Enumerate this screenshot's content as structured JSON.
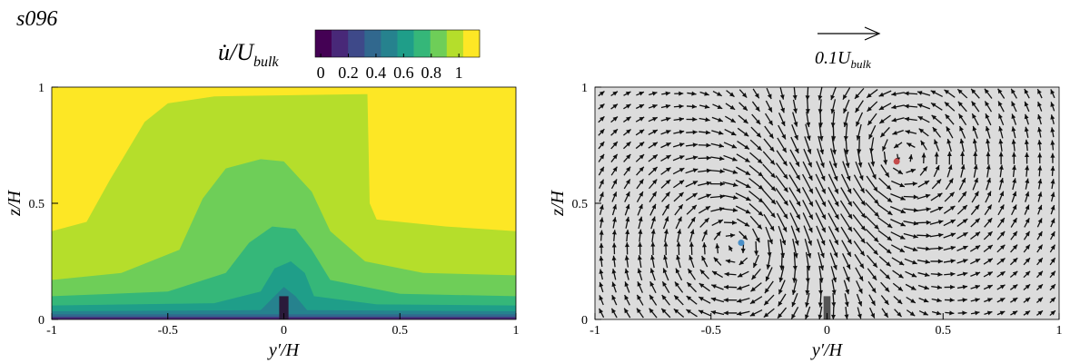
{
  "figure_label": "s096",
  "chart_data": [
    {
      "type": "contour",
      "title": "u̇/U",
      "title_subscript": "bulk",
      "x_label": "y′/H",
      "y_label": "z/H",
      "xlim": [
        -1,
        1
      ],
      "ylim": [
        0,
        1
      ],
      "xticks": [
        -1,
        -0.5,
        0,
        0.5,
        1
      ],
      "yticks": [
        0,
        0.5,
        1
      ],
      "colorbar": {
        "lim": [
          -0.04,
          1.15
        ],
        "ticks": [
          0,
          0.2,
          0.4,
          0.6,
          0.8,
          1
        ],
        "colors": [
          "#440154",
          "#482878",
          "#3e4989",
          "#31688e",
          "#26828e",
          "#1f9e89",
          "#35b779",
          "#6ece58",
          "#b5de2b",
          "#fde725"
        ]
      }
    },
    {
      "type": "quiver",
      "reference_label": "0.1U",
      "reference_subscript": "bulk",
      "x_label": "y′/H",
      "y_label": "z/H",
      "xlim": [
        -1,
        1
      ],
      "ylim": [
        0,
        1
      ],
      "xticks": [
        -1,
        -0.5,
        0,
        0.5,
        1
      ],
      "yticks": [
        0,
        0.5,
        1
      ],
      "background": "#dcdcdc",
      "arrow_color": "#111111",
      "markers": [
        {
          "x": -0.37,
          "y": 0.33,
          "color": "#4a8fc7"
        },
        {
          "x": 0.3,
          "y": 0.68,
          "color": "#c44a4a"
        }
      ]
    }
  ]
}
